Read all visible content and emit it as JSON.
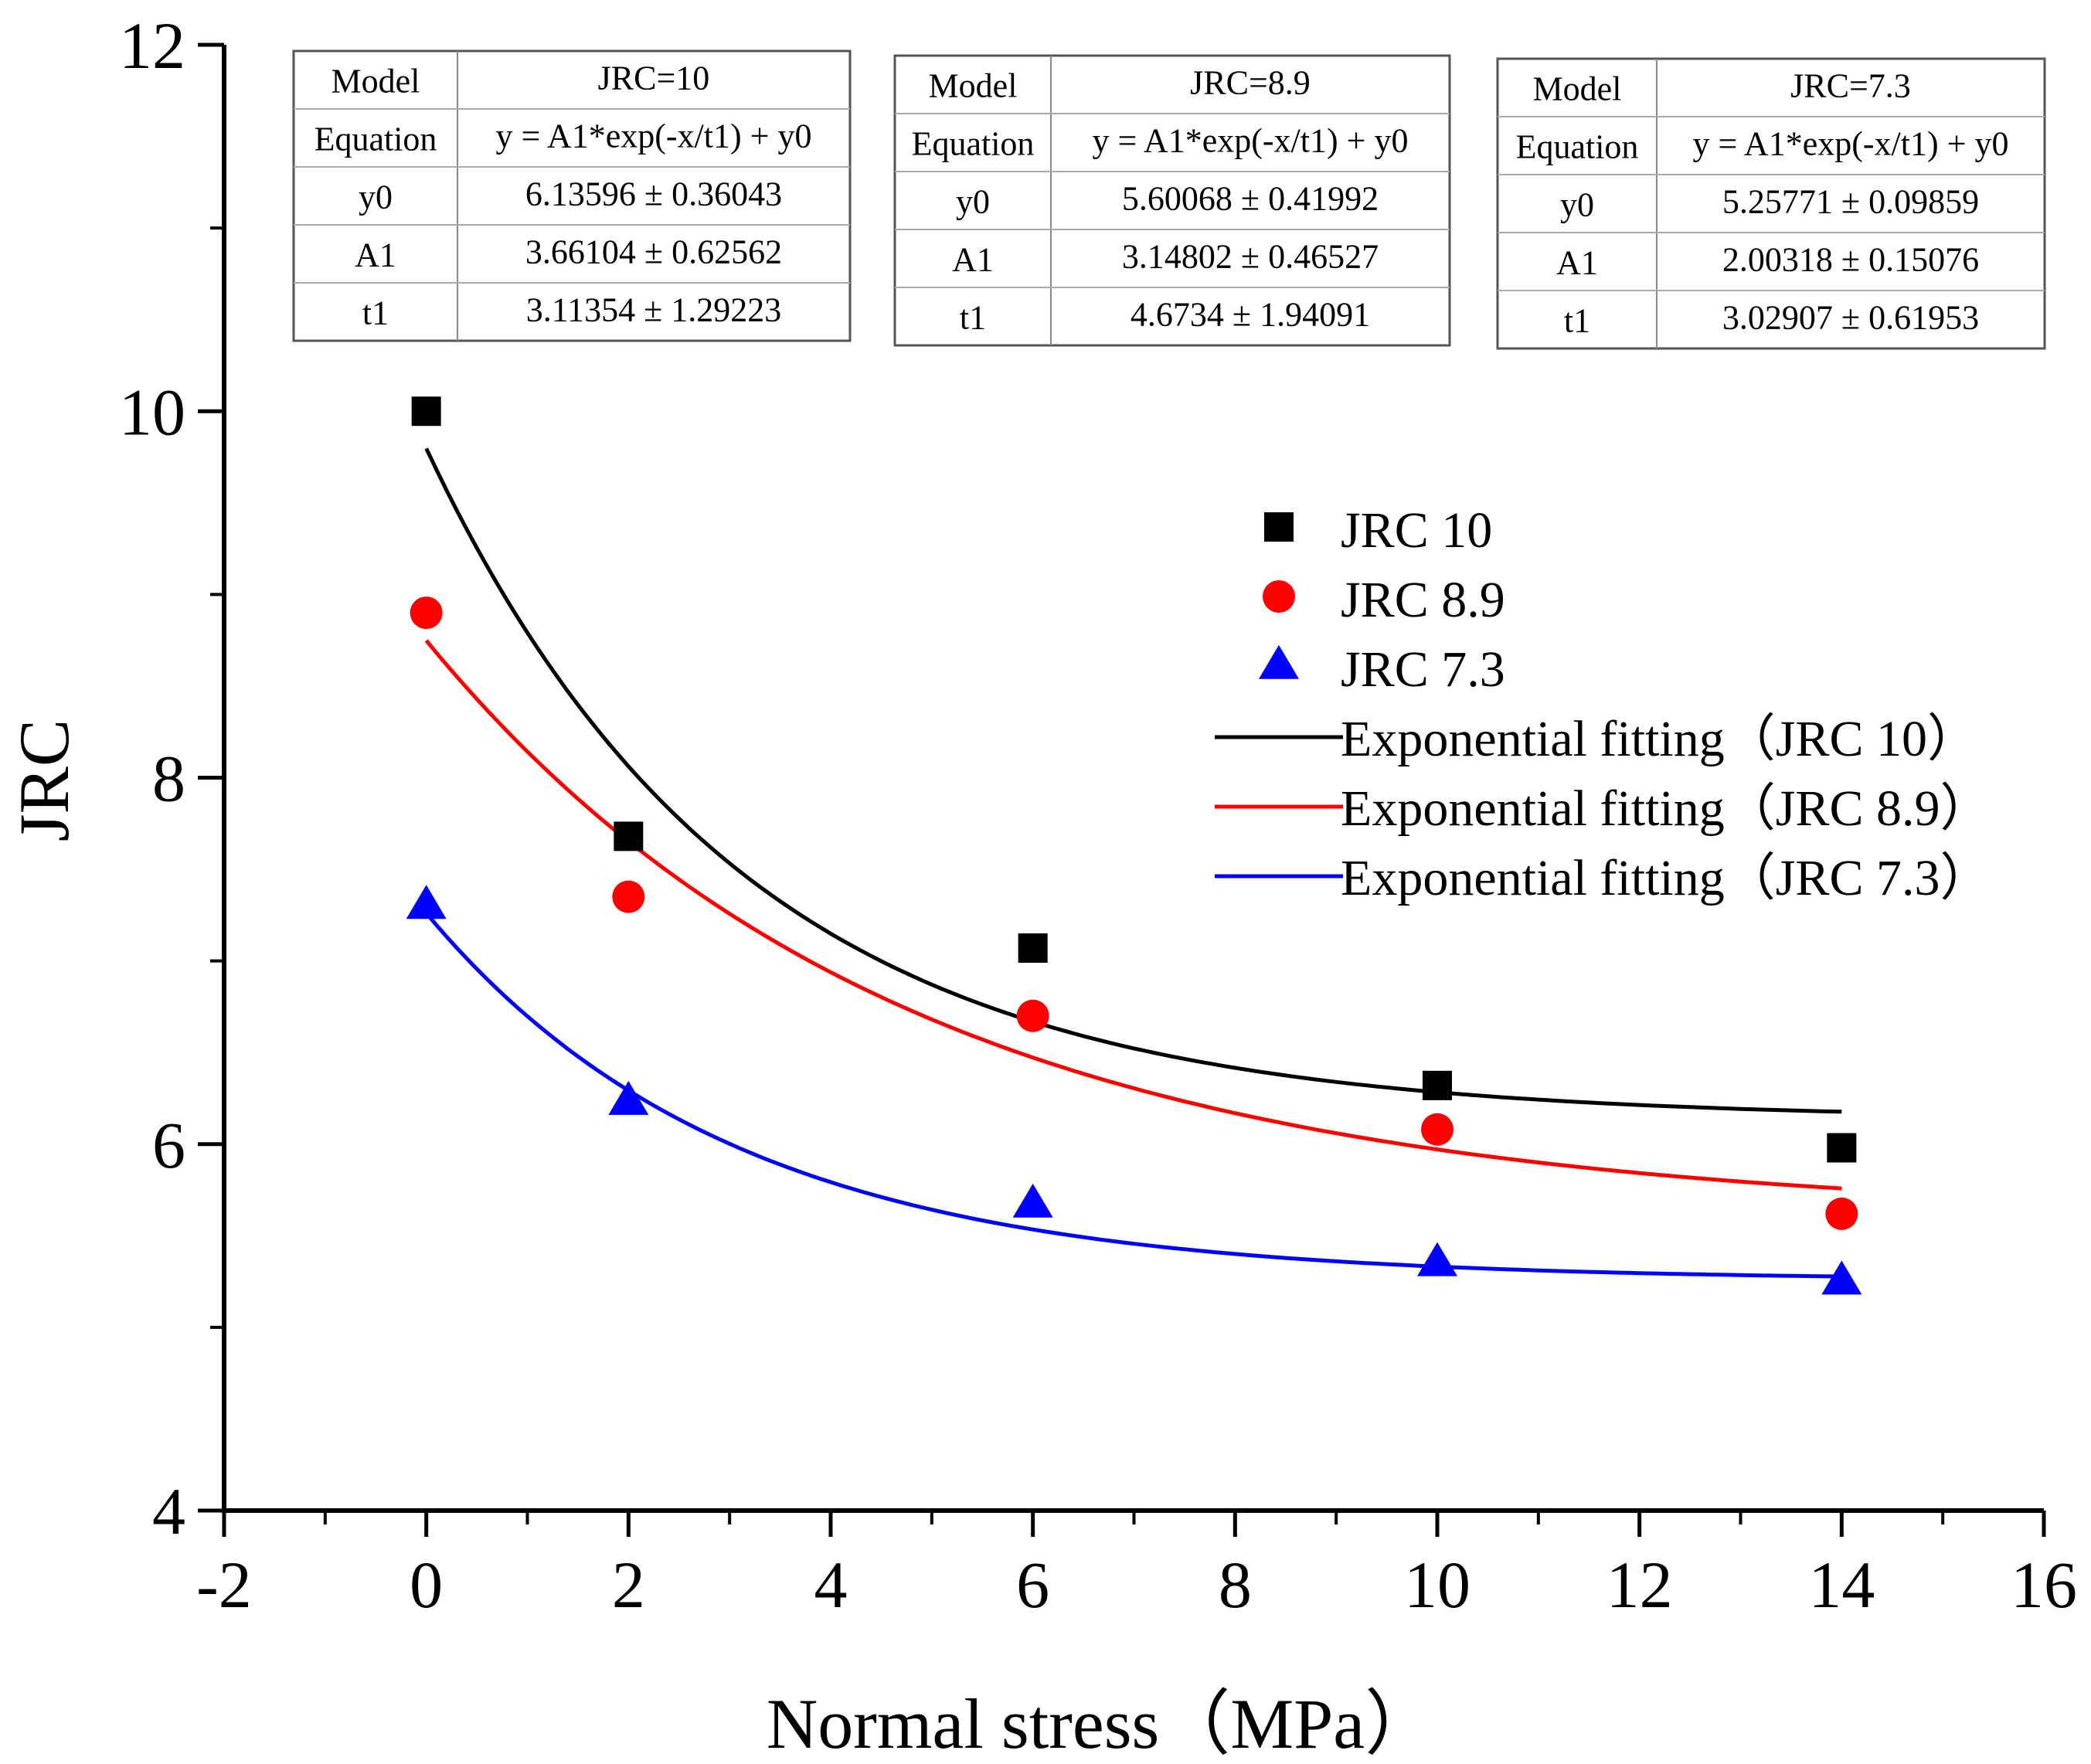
{
  "chart_data": {
    "type": "scatter",
    "title": "",
    "xlabel": "Normal stress（MPa）",
    "ylabel": "JRC",
    "xlim": [
      -2,
      16
    ],
    "ylim": [
      4,
      12
    ],
    "xticks": [
      -2,
      0,
      2,
      4,
      6,
      8,
      10,
      12,
      14,
      16
    ],
    "yticks": [
      4,
      6,
      8,
      10,
      12
    ],
    "xtick_labels": [
      "-2",
      "0",
      "2",
      "4",
      "6",
      "8",
      "10",
      "12",
      "14",
      "16"
    ],
    "ytick_labels": [
      "4",
      "6",
      "8",
      "10",
      "12"
    ],
    "grid": false,
    "legend_position": "center-right",
    "x": [
      0,
      2,
      6,
      10,
      14
    ],
    "series": [
      {
        "name": "JRC 10",
        "marker": "square",
        "color": "#000000",
        "values": [
          10.0,
          7.68,
          7.07,
          6.32,
          5.98
        ],
        "fit": {
          "name": "Exponential fitting（JRC 10）",
          "color": "#000000",
          "y0": 6.13596,
          "A1": 3.66104,
          "t1": 3.11354
        }
      },
      {
        "name": "JRC 8.9",
        "marker": "circle",
        "color": "#ff0000",
        "values": [
          8.9,
          7.35,
          6.7,
          6.08,
          5.62
        ],
        "fit": {
          "name": "Exponential fitting（JRC 8.9）",
          "color": "#ff0000",
          "y0": 5.60068,
          "A1": 3.14802,
          "t1": 4.6734
        }
      },
      {
        "name": "JRC 7.3",
        "marker": "triangle",
        "color": "#0000ff",
        "values": [
          7.3,
          6.23,
          5.67,
          5.35,
          5.25
        ],
        "fit": {
          "name": "Exponential fitting（JRC 7.3）",
          "color": "#0000ff",
          "y0": 5.25771,
          "A1": 2.00318,
          "t1": 3.02907
        }
      }
    ],
    "tables": [
      {
        "rows": [
          [
            "Model",
            "JRC=10"
          ],
          [
            "Equation",
            "y = A1*exp(-x/t1) + y0"
          ],
          [
            "y0",
            "6.13596 ± 0.36043"
          ],
          [
            "A1",
            "3.66104 ± 0.62562"
          ],
          [
            "t1",
            "3.11354 ± 1.29223"
          ]
        ]
      },
      {
        "rows": [
          [
            "Model",
            "JRC=8.9"
          ],
          [
            "Equation",
            "y = A1*exp(-x/t1) + y0"
          ],
          [
            "y0",
            "5.60068 ± 0.41992"
          ],
          [
            "A1",
            "3.14802 ± 0.46527"
          ],
          [
            "t1",
            "4.6734 ± 1.94091"
          ]
        ]
      },
      {
        "rows": [
          [
            "Model",
            "JRC=7.3"
          ],
          [
            "Equation",
            "y = A1*exp(-x/t1) + y0"
          ],
          [
            "y0",
            "5.25771 ± 0.09859"
          ],
          [
            "A1",
            "2.00318 ± 0.15076"
          ],
          [
            "t1",
            "3.02907 ± 0.61953"
          ]
        ]
      }
    ]
  }
}
